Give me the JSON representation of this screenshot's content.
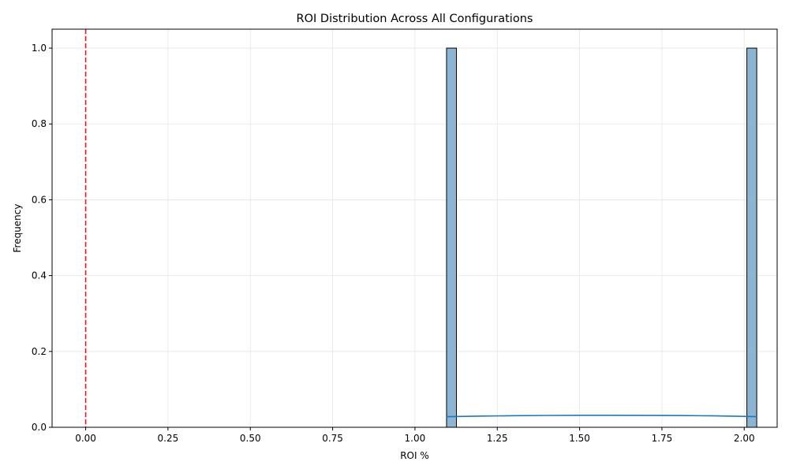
{
  "chart_data": {
    "type": "bar",
    "title": "ROI Distribution Across All Configurations",
    "xlabel": "ROI %",
    "ylabel": "Frequency",
    "xlim": [
      -0.102,
      2.1
    ],
    "ylim": [
      0,
      1.05
    ],
    "x_ticks": [
      "0.00",
      "0.25",
      "0.50",
      "0.75",
      "1.00",
      "1.25",
      "1.50",
      "1.75",
      "2.00"
    ],
    "y_ticks": [
      "0.0",
      "0.2",
      "0.4",
      "0.6",
      "0.8",
      "1.0"
    ],
    "grid": true,
    "bins": [
      {
        "x_start": 1.096,
        "x_end": 1.126,
        "count": 1
      },
      {
        "x_start": 2.008,
        "x_end": 2.038,
        "count": 1
      }
    ],
    "kde": {
      "x": [
        1.096,
        1.2,
        1.3,
        1.4,
        1.5,
        1.6,
        1.7,
        1.8,
        1.9,
        2.0,
        2.038
      ],
      "y": [
        0.028,
        0.0295,
        0.0305,
        0.0312,
        0.0315,
        0.0316,
        0.0314,
        0.031,
        0.0302,
        0.0288,
        0.028
      ]
    },
    "reference_line": {
      "x": 0.0
    },
    "colors": {
      "bar_fill": "#8cb4d3",
      "bar_edge": "#000000",
      "kde_line": "#1f77b4",
      "reference_line": "#e31a1c",
      "grid": "#e6e6e6"
    }
  }
}
